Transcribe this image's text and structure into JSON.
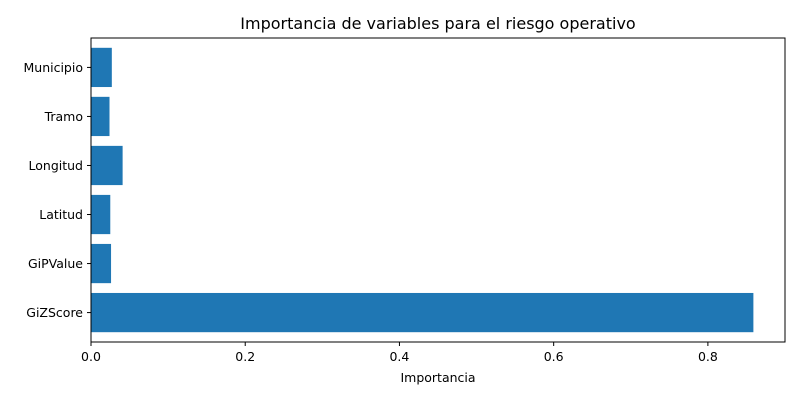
{
  "chart_data": {
    "type": "bar",
    "orientation": "horizontal",
    "title": "Importancia de variables para el riesgo operativo",
    "xlabel": "Importancia",
    "ylabel": "",
    "categories": [
      "GiZScore",
      "GiPValue",
      "Latitud",
      "Longitud",
      "Tramo",
      "Municipio"
    ],
    "values": [
      0.859,
      0.026,
      0.025,
      0.041,
      0.024,
      0.027
    ],
    "xlim": [
      0,
      0.9
    ],
    "xticks": [
      0.0,
      0.2,
      0.4,
      0.6,
      0.8
    ],
    "xtick_labels": [
      "0.0",
      "0.2",
      "0.4",
      "0.6",
      "0.8"
    ],
    "grid": false,
    "color": "#1f77b4"
  }
}
